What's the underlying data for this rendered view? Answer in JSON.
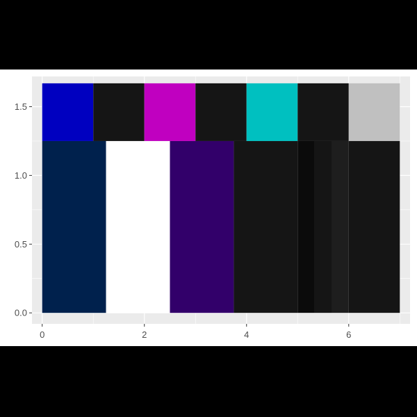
{
  "chart_data": {
    "type": "heatmap",
    "title": "",
    "xlabel": "",
    "ylabel": "",
    "xlim": [
      -0.2,
      7.2
    ],
    "ylim": [
      -0.08,
      1.72
    ],
    "x_ticks": [
      0,
      2,
      4,
      6
    ],
    "x_tick_labels": [
      "0",
      "2",
      "4",
      "6"
    ],
    "y_ticks": [
      0.0,
      0.5,
      1.0,
      1.5
    ],
    "y_tick_labels": [
      "0.0",
      "0.5",
      "1.0",
      "1.5"
    ],
    "grid": true,
    "legend": "none",
    "tiles": [
      {
        "x0": 0.0,
        "x1": 1.0,
        "y0": 1.25,
        "y1": 1.67,
        "color": "#0000c0"
      },
      {
        "x0": 1.0,
        "x1": 2.0,
        "y0": 1.25,
        "y1": 1.67,
        "color": "#151515"
      },
      {
        "x0": 2.0,
        "x1": 3.0,
        "y0": 1.25,
        "y1": 1.67,
        "color": "#c000c0"
      },
      {
        "x0": 3.0,
        "x1": 4.0,
        "y0": 1.25,
        "y1": 1.67,
        "color": "#151515"
      },
      {
        "x0": 4.0,
        "x1": 5.0,
        "y0": 1.25,
        "y1": 1.67,
        "color": "#00c0c0"
      },
      {
        "x0": 5.0,
        "x1": 6.0,
        "y0": 1.25,
        "y1": 1.67,
        "color": "#151515"
      },
      {
        "x0": 6.0,
        "x1": 7.0,
        "y0": 1.25,
        "y1": 1.67,
        "color": "#c0c0c0"
      },
      {
        "x0": 0.0,
        "x1": 1.25,
        "y0": 0.0,
        "y1": 1.25,
        "color": "#00214d"
      },
      {
        "x0": 1.25,
        "x1": 2.5,
        "y0": 0.0,
        "y1": 1.25,
        "color": "#ffffff"
      },
      {
        "x0": 2.5,
        "x1": 3.75,
        "y0": 0.0,
        "y1": 1.25,
        "color": "#32006a"
      },
      {
        "x0": 3.75,
        "x1": 5.0,
        "y0": 0.0,
        "y1": 1.25,
        "color": "#151515"
      },
      {
        "x0": 5.0,
        "x1": 5.33,
        "y0": 0.0,
        "y1": 1.25,
        "color": "#0b0b0b"
      },
      {
        "x0": 5.33,
        "x1": 5.67,
        "y0": 0.0,
        "y1": 1.25,
        "color": "#151515"
      },
      {
        "x0": 5.67,
        "x1": 6.0,
        "y0": 0.0,
        "y1": 1.25,
        "color": "#1e1e1e"
      },
      {
        "x0": 6.0,
        "x1": 7.0,
        "y0": 0.0,
        "y1": 1.25,
        "color": "#151515"
      }
    ]
  },
  "colors": {
    "page_background": "#000000",
    "plot_background": "#ebebeb",
    "gridline": "#ffffff",
    "tick_text": "#4d4d4d",
    "tick_mark": "#333333"
  }
}
